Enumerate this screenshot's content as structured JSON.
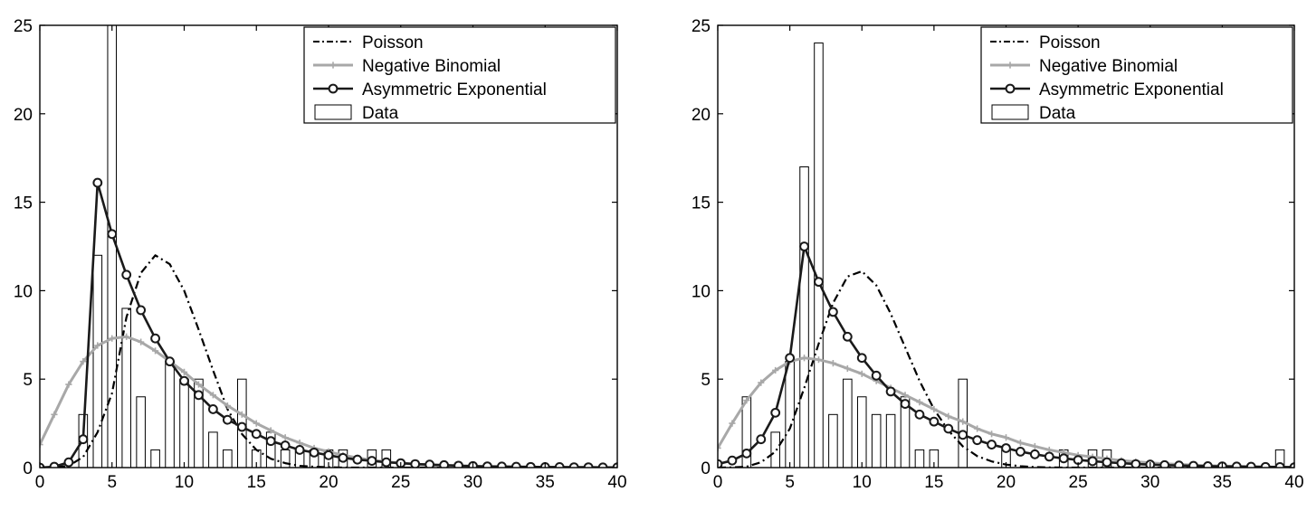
{
  "colors": {
    "poisson": "#000000",
    "negative_binomial": "#a8a8a8",
    "asymmetric_exponential": "#1a1a1a",
    "data_bars": "#000000",
    "background": "#ffffff"
  },
  "chart_data": [
    {
      "type": "bar",
      "xlim": [
        0,
        40
      ],
      "ylim": [
        0,
        25
      ],
      "xticks": [
        "0",
        "5",
        "10",
        "15",
        "20",
        "25",
        "30",
        "35",
        "40"
      ],
      "yticks": [
        "0",
        "5",
        "10",
        "15",
        "20",
        "25"
      ],
      "grid": false,
      "legend_position": "top-right",
      "legend": [
        "Poisson",
        "Negative Binomial",
        "Asymmetric Exponential",
        "Data"
      ],
      "histogram": {
        "name": "Data",
        "x": [
          3,
          4,
          5,
          6,
          7,
          8,
          9,
          10,
          11,
          12,
          13,
          14,
          15,
          16,
          17,
          18,
          19,
          20,
          21,
          23,
          24
        ],
        "values": [
          3,
          12,
          25,
          9,
          4,
          1,
          6,
          5,
          5,
          2,
          1,
          5,
          1,
          2,
          1,
          1,
          1,
          1,
          1,
          1,
          1
        ]
      },
      "series": [
        {
          "name": "Poisson",
          "style": "dash-dot",
          "x": [
            0,
            1,
            2,
            3,
            4,
            5,
            6,
            7,
            8,
            9,
            10,
            11,
            12,
            13,
            14,
            15,
            16,
            17,
            18,
            19,
            20,
            21,
            22,
            23,
            24,
            25,
            26,
            27,
            28,
            29,
            30,
            31,
            32,
            33,
            34,
            35,
            36,
            37,
            38,
            39,
            40
          ],
          "values": [
            0,
            0.02,
            0.1,
            0.6,
            2.0,
            4.2,
            8.5,
            11.0,
            12.0,
            11.5,
            10.0,
            7.8,
            5.5,
            3.3,
            1.9,
            1.0,
            0.5,
            0.25,
            0.1,
            0.05,
            0.02,
            0,
            0,
            0,
            0,
            0,
            0,
            0,
            0,
            0,
            0,
            0,
            0,
            0,
            0,
            0,
            0,
            0,
            0,
            0,
            0
          ]
        },
        {
          "name": "Negative Binomial",
          "marker": "plus",
          "x": [
            0,
            1,
            2,
            3,
            4,
            5,
            6,
            7,
            8,
            9,
            10,
            11,
            12,
            13,
            14,
            15,
            16,
            17,
            18,
            19,
            20,
            21,
            22,
            23,
            24,
            25,
            26,
            27,
            28,
            29,
            30,
            31,
            32,
            33,
            34,
            35,
            36,
            37,
            38,
            39,
            40
          ],
          "values": [
            1.3,
            3.0,
            4.7,
            6.0,
            6.9,
            7.3,
            7.4,
            7.1,
            6.6,
            6.0,
            5.4,
            4.7,
            4.1,
            3.5,
            3.0,
            2.5,
            2.1,
            1.7,
            1.4,
            1.1,
            0.9,
            0.7,
            0.55,
            0.42,
            0.33,
            0.25,
            0.19,
            0.15,
            0.11,
            0.08,
            0.06,
            0.05,
            0.03,
            0.02,
            0.02,
            0.01,
            0.01,
            0,
            0,
            0,
            0
          ]
        },
        {
          "name": "Asymmetric Exponential",
          "marker": "circle",
          "x": [
            0,
            1,
            2,
            3,
            4,
            5,
            6,
            7,
            8,
            9,
            10,
            11,
            12,
            13,
            14,
            15,
            16,
            17,
            18,
            19,
            20,
            21,
            22,
            23,
            24,
            25,
            26,
            27,
            28,
            29,
            30,
            31,
            32,
            33,
            34,
            35,
            36,
            37,
            38,
            39,
            40
          ],
          "values": [
            0,
            0.05,
            0.3,
            1.6,
            16.1,
            13.2,
            10.9,
            8.9,
            7.3,
            6.0,
            4.9,
            4.1,
            3.3,
            2.7,
            2.3,
            1.9,
            1.5,
            1.25,
            1.0,
            0.85,
            0.7,
            0.55,
            0.45,
            0.38,
            0.3,
            0.25,
            0.2,
            0.17,
            0.14,
            0.11,
            0.09,
            0.07,
            0.06,
            0.05,
            0.04,
            0.03,
            0.03,
            0.02,
            0.02,
            0.01,
            0.01
          ]
        }
      ]
    },
    {
      "type": "bar",
      "xlim": [
        0,
        40
      ],
      "ylim": [
        0,
        25
      ],
      "xticks": [
        "0",
        "5",
        "10",
        "15",
        "20",
        "25",
        "30",
        "35",
        "40"
      ],
      "yticks": [
        "0",
        "5",
        "10",
        "15",
        "20",
        "25"
      ],
      "grid": false,
      "legend_position": "top-right",
      "legend": [
        "Poisson",
        "Negative Binomial",
        "Asymmetric Exponential",
        "Data"
      ],
      "histogram": {
        "name": "Data",
        "x": [
          2,
          4,
          5,
          6,
          7,
          8,
          9,
          10,
          11,
          12,
          13,
          14,
          15,
          17,
          20,
          24,
          26,
          27,
          39
        ],
        "values": [
          4,
          2,
          6,
          17,
          24,
          3,
          5,
          4,
          3,
          3,
          4,
          1,
          1,
          5,
          1,
          1,
          1,
          1,
          1
        ]
      },
      "series": [
        {
          "name": "Poisson",
          "style": "dash-dot",
          "x": [
            0,
            1,
            2,
            3,
            4,
            5,
            6,
            7,
            8,
            9,
            10,
            11,
            12,
            13,
            14,
            15,
            16,
            17,
            18,
            19,
            20,
            21,
            22,
            23,
            24,
            25,
            26,
            27,
            28,
            29,
            30,
            31,
            32,
            33,
            34,
            35,
            36,
            37,
            38,
            39,
            40
          ],
          "values": [
            0,
            0.01,
            0.05,
            0.3,
            0.9,
            2.2,
            4.5,
            7.0,
            9.3,
            10.8,
            11.1,
            10.3,
            8.7,
            6.8,
            4.9,
            3.3,
            2.1,
            1.2,
            0.65,
            0.35,
            0.17,
            0.08,
            0.03,
            0.01,
            0,
            0,
            0,
            0,
            0,
            0,
            0,
            0,
            0,
            0,
            0,
            0,
            0,
            0,
            0,
            0,
            0
          ]
        },
        {
          "name": "Negative Binomial",
          "marker": "plus",
          "x": [
            0,
            1,
            2,
            3,
            4,
            5,
            6,
            7,
            8,
            9,
            10,
            11,
            12,
            13,
            14,
            15,
            16,
            17,
            18,
            19,
            20,
            21,
            22,
            23,
            24,
            25,
            26,
            27,
            28,
            29,
            30,
            31,
            32,
            33,
            34,
            35,
            36,
            37,
            38,
            39,
            40
          ],
          "values": [
            1.1,
            2.5,
            3.8,
            4.8,
            5.5,
            6.0,
            6.2,
            6.1,
            5.9,
            5.6,
            5.3,
            4.9,
            4.5,
            4.1,
            3.7,
            3.3,
            2.9,
            2.6,
            2.2,
            1.9,
            1.7,
            1.4,
            1.2,
            1.0,
            0.85,
            0.7,
            0.6,
            0.5,
            0.4,
            0.33,
            0.27,
            0.22,
            0.18,
            0.14,
            0.11,
            0.09,
            0.07,
            0.05,
            0.04,
            0.03,
            0.02
          ]
        },
        {
          "name": "Asymmetric Exponential",
          "marker": "circle",
          "x": [
            0,
            1,
            2,
            3,
            4,
            5,
            6,
            7,
            8,
            9,
            10,
            11,
            12,
            13,
            14,
            15,
            16,
            17,
            18,
            19,
            20,
            21,
            22,
            23,
            24,
            25,
            26,
            27,
            28,
            29,
            30,
            31,
            32,
            33,
            34,
            35,
            36,
            37,
            38,
            39,
            40
          ],
          "values": [
            0.2,
            0.4,
            0.8,
            1.6,
            3.1,
            6.2,
            12.5,
            10.5,
            8.8,
            7.4,
            6.2,
            5.2,
            4.3,
            3.6,
            3.0,
            2.6,
            2.2,
            1.85,
            1.55,
            1.3,
            1.1,
            0.9,
            0.75,
            0.62,
            0.52,
            0.43,
            0.36,
            0.3,
            0.25,
            0.2,
            0.17,
            0.14,
            0.12,
            0.1,
            0.08,
            0.07,
            0.06,
            0.05,
            0.04,
            0.03,
            0.02
          ]
        }
      ]
    }
  ]
}
